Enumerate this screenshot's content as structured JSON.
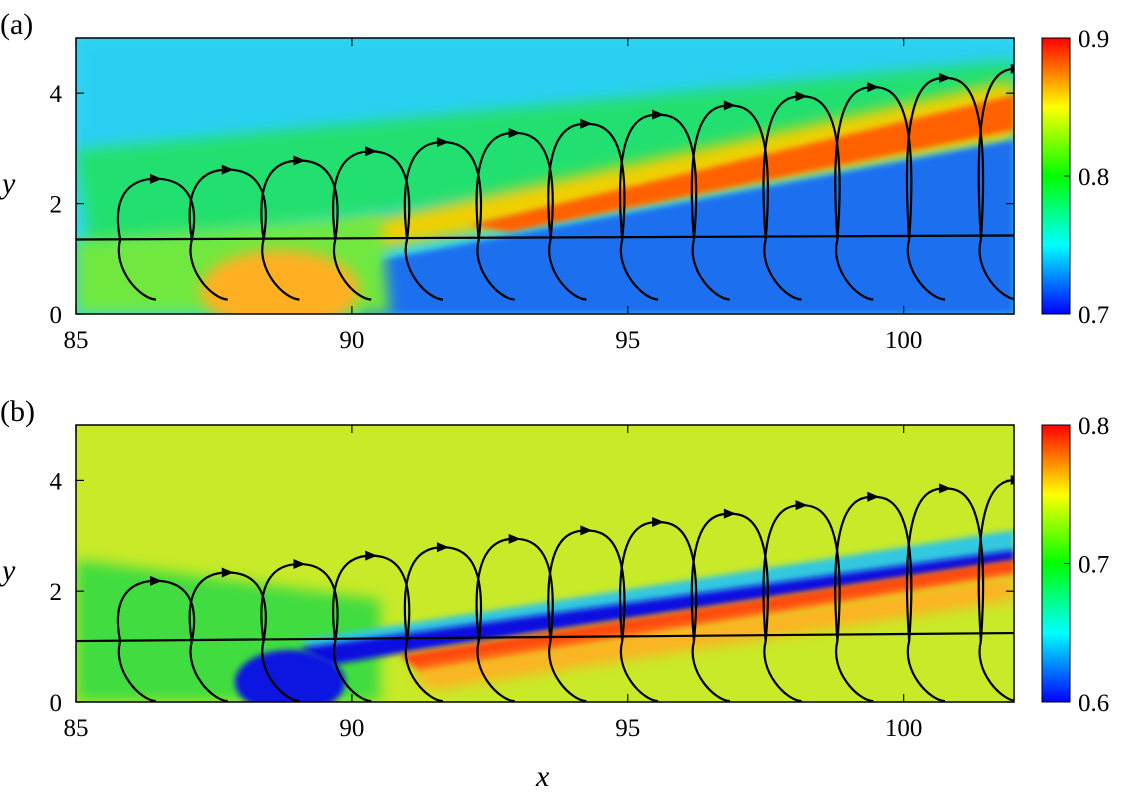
{
  "chart_data": [
    {
      "type": "heatmap",
      "panel_label": "(a)",
      "xlabel": "",
      "ylabel": "y",
      "xlim": [
        85,
        102
      ],
      "ylim": [
        0,
        5
      ],
      "xticks": [
        85,
        90,
        95,
        100
      ],
      "yticks": [
        0,
        2,
        4
      ],
      "colorbar": {
        "range": [
          0.7,
          0.9
        ],
        "ticks": [
          0.7,
          0.8,
          0.9
        ],
        "colormap": "jet"
      },
      "background_value": 0.76,
      "features": [
        {
          "name": "high band",
          "from": [
            90.5,
            1.35
          ],
          "to": [
            102,
            3.6
          ],
          "value": 0.89
        },
        {
          "name": "low region",
          "from": [
            91,
            1.0
          ],
          "to": [
            102,
            2.6
          ],
          "value": 0.71
        },
        {
          "name": "near-wall warm spot",
          "center": [
            89,
            0.3
          ],
          "value": 0.86
        }
      ],
      "streamline_axis_y": 1.35
    },
    {
      "type": "heatmap",
      "panel_label": "(b)",
      "xlabel": "x",
      "ylabel": "y",
      "xlim": [
        85,
        102
      ],
      "ylim": [
        0,
        5
      ],
      "xticks": [
        85,
        90,
        95,
        100
      ],
      "yticks": [
        0,
        2,
        4
      ],
      "colorbar": {
        "range": [
          0.6,
          0.8
        ],
        "ticks": [
          0.6,
          0.7,
          0.8
        ],
        "colormap": "jet"
      },
      "background_value": 0.74,
      "features": [
        {
          "name": "low band",
          "from": [
            90,
            1.0
          ],
          "to": [
            102,
            2.7
          ],
          "value": 0.61
        },
        {
          "name": "high band",
          "from": [
            90.5,
            0.85
          ],
          "to": [
            102,
            2.55
          ],
          "value": 0.79
        },
        {
          "name": "near-wall low spot",
          "center": [
            88.7,
            0.3
          ],
          "value": 0.6
        }
      ],
      "streamline_axis_y": 1.1
    }
  ]
}
